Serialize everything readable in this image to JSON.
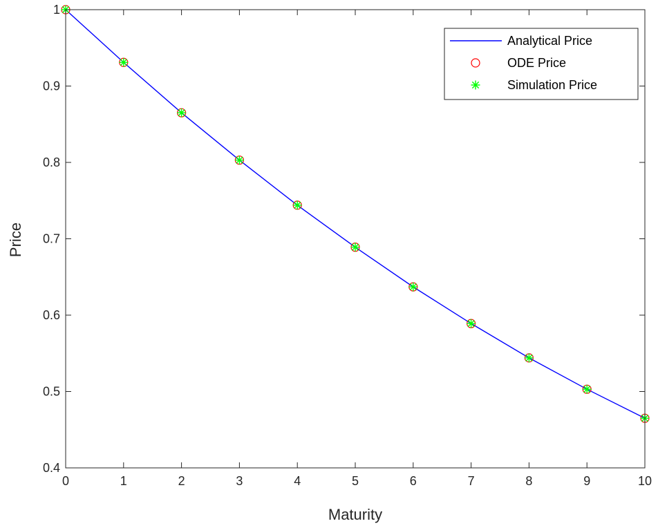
{
  "chart_data": {
    "type": "line",
    "xlabel": "Maturity",
    "ylabel": "Price",
    "xlim": [
      0,
      10
    ],
    "ylim": [
      0.4,
      1
    ],
    "x_ticks": [
      "0",
      "1",
      "2",
      "3",
      "4",
      "5",
      "6",
      "7",
      "8",
      "9",
      "10"
    ],
    "y_ticks": [
      "0.4",
      "0.5",
      "0.6",
      "0.7",
      "0.8",
      "0.9",
      "1"
    ],
    "grid": false,
    "legend_position": "top-right",
    "x": [
      0,
      1,
      2,
      3,
      4,
      5,
      6,
      7,
      8,
      9,
      10
    ],
    "series": [
      {
        "name": "Analytical Price",
        "style": "line",
        "color": "#0000ff",
        "values": [
          1.0,
          0.931,
          0.865,
          0.803,
          0.744,
          0.689,
          0.637,
          0.589,
          0.544,
          0.503,
          0.465
        ]
      },
      {
        "name": "ODE Price",
        "style": "circle-marker",
        "color": "#ff0000",
        "values": [
          1.0,
          0.931,
          0.865,
          0.803,
          0.744,
          0.689,
          0.637,
          0.589,
          0.544,
          0.503,
          0.465
        ]
      },
      {
        "name": "Simulation Price",
        "style": "asterisk-marker",
        "color": "#00ff00",
        "values": [
          1.0,
          0.931,
          0.865,
          0.803,
          0.744,
          0.689,
          0.637,
          0.589,
          0.544,
          0.503,
          0.465
        ]
      }
    ]
  }
}
